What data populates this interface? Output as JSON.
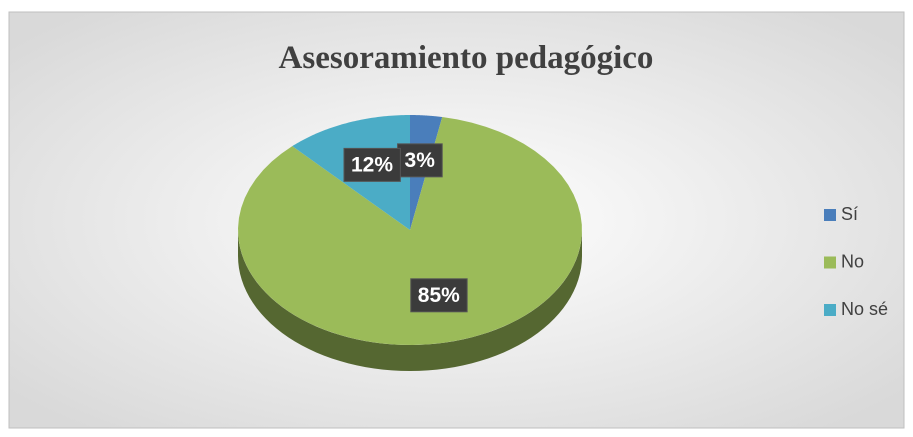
{
  "chart_data": {
    "type": "pie",
    "title": "Asesoramiento pedagógico",
    "categories": [
      "Sí",
      "No",
      "No sé"
    ],
    "values": [
      3,
      85,
      12
    ],
    "value_labels": [
      "3%",
      "85%",
      "12%"
    ],
    "colors": [
      "#4a7ebb",
      "#9bbb59",
      "#4bacc6"
    ],
    "legend": "right"
  }
}
